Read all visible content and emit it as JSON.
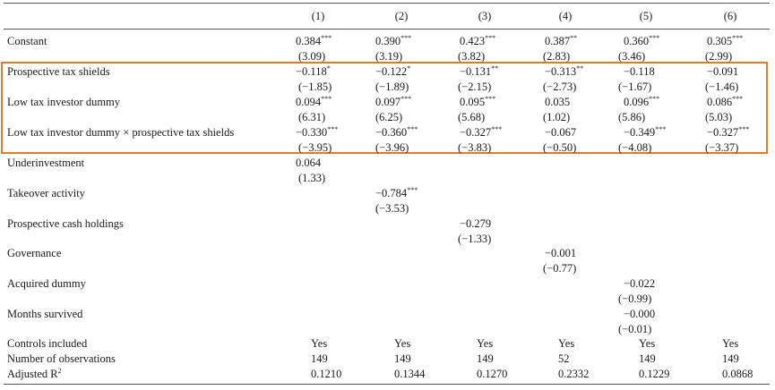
{
  "columns": [
    "(1)",
    "(2)",
    "(3)",
    "(4)",
    "(5)",
    "(6)"
  ],
  "rows": [
    {
      "label": "Constant",
      "coef": [
        "0.384***",
        "0.390***",
        "0.423***",
        "0.387**",
        "0.360***",
        "0.305***"
      ],
      "t": [
        "(3.09)",
        "(3.19)",
        "(3.82)",
        "(2.83)",
        "(3.46)",
        "(2.99)"
      ]
    },
    {
      "label": "Prospective tax shields",
      "coef": [
        "−0.118*",
        "−0.122*",
        "−0.131**",
        "−0.313**",
        "−0.118",
        "−0.091"
      ],
      "t": [
        "(−1.85)",
        "(−1.89)",
        "(−2.15)",
        "(−2.73)",
        "(−1.67)",
        "(−1.46)"
      ]
    },
    {
      "label": "Low tax investor dummy",
      "coef": [
        "0.094***",
        "0.097***",
        "0.095***",
        "0.035",
        "0.096***",
        "0.086***"
      ],
      "t": [
        "(6.31)",
        "(6.25)",
        "(5.68)",
        "(1.02)",
        "(5.86)",
        "(5.03)"
      ]
    },
    {
      "label": "Low tax investor dummy × prospective tax shields",
      "coef": [
        "−0.330***",
        "−0.360***",
        "−0.327***",
        "−0.067",
        "−0.349***",
        "−0.327***"
      ],
      "t": [
        "(−3.95)",
        "(−3.96)",
        "(−3.83)",
        "(−0.50)",
        "(−4.08)",
        "(−3.37)"
      ]
    },
    {
      "label": "Underinvestment",
      "coef": [
        "0.064",
        "",
        "",
        "",
        "",
        ""
      ],
      "t": [
        "(1.33)",
        "",
        "",
        "",
        "",
        ""
      ]
    },
    {
      "label": "Takeover activity",
      "coef": [
        "",
        "−0.784***",
        "",
        "",
        "",
        ""
      ],
      "t": [
        "",
        "(−3.53)",
        "",
        "",
        "",
        ""
      ]
    },
    {
      "label": "Prospective cash holdings",
      "coef": [
        "",
        "",
        "−0.279",
        "",
        "",
        ""
      ],
      "t": [
        "",
        "",
        "(−1.33)",
        "",
        "",
        ""
      ]
    },
    {
      "label": "Governance",
      "coef": [
        "",
        "",
        "",
        "−0.001",
        "",
        ""
      ],
      "t": [
        "",
        "",
        "",
        "(−0.77)",
        "",
        ""
      ]
    },
    {
      "label": "Acquired dummy",
      "coef": [
        "",
        "",
        "",
        "",
        "−0.022",
        ""
      ],
      "t": [
        "",
        "",
        "",
        "",
        "(−0.99)",
        ""
      ]
    },
    {
      "label": "Months survived",
      "coef": [
        "",
        "",
        "",
        "",
        "−0.000",
        ""
      ],
      "t": [
        "",
        "",
        "",
        "",
        "(−0.01)",
        ""
      ]
    }
  ],
  "summary": [
    {
      "label": "Controls included",
      "values": [
        "Yes",
        "Yes",
        "Yes",
        "Yes",
        "Yes",
        "Yes"
      ]
    },
    {
      "label": "Number of observations",
      "values": [
        "149",
        "149",
        "149",
        "52",
        "149",
        "149"
      ]
    },
    {
      "label_main": "Adjusted R",
      "label_sup": "2",
      "values": [
        "0.1210",
        "0.1344",
        "0.1270",
        "0.2332",
        "0.1229",
        "0.0868"
      ]
    }
  ],
  "highlight_color": "#e07b2a"
}
